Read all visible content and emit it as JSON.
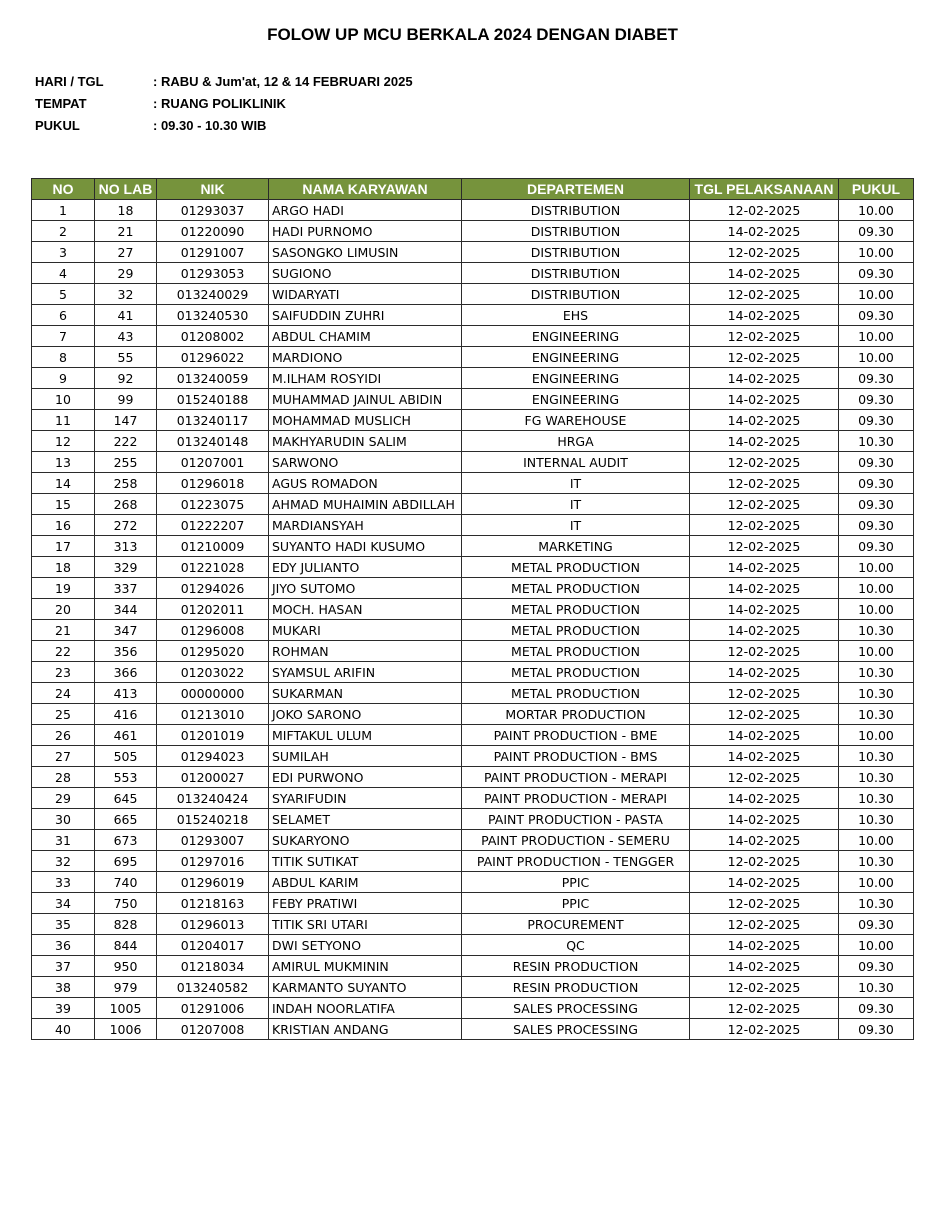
{
  "title": "FOLOW UP MCU BERKALA 2024 DENGAN DIABET",
  "info": [
    {
      "label": "HARI / TGL",
      "value": ": RABU & Jum'at, 12 & 14 FEBRUARI 2025"
    },
    {
      "label": "TEMPAT",
      "value": ": RUANG POLIKLINIK"
    },
    {
      "label": "PUKUL",
      "value": ": 09.30 - 10.30 WIB"
    }
  ],
  "table": {
    "header_color": "#76933c",
    "columns": [
      "NO",
      "NO LAB",
      "NIK",
      "NAMA KARYAWAN",
      "DEPARTEMEN",
      "TGL PELAKSANAAN",
      "PUKUL"
    ],
    "rows": [
      [
        "1",
        "18",
        "01293037",
        "ARGO HADI",
        "DISTRIBUTION",
        "12-02-2025",
        "10.00"
      ],
      [
        "2",
        "21",
        "01220090",
        "HADI PURNOMO",
        "DISTRIBUTION",
        "14-02-2025",
        "09.30"
      ],
      [
        "3",
        "27",
        "01291007",
        "SASONGKO LIMUSIN",
        "DISTRIBUTION",
        "12-02-2025",
        "10.00"
      ],
      [
        "4",
        "29",
        "01293053",
        "SUGIONO",
        "DISTRIBUTION",
        "14-02-2025",
        "09.30"
      ],
      [
        "5",
        "32",
        "013240029",
        "WIDARYATI",
        "DISTRIBUTION",
        "12-02-2025",
        "10.00"
      ],
      [
        "6",
        "41",
        "013240530",
        "SAIFUDDIN ZUHRI",
        "EHS",
        "14-02-2025",
        "09.30"
      ],
      [
        "7",
        "43",
        "01208002",
        "ABDUL CHAMIM",
        "ENGINEERING",
        "12-02-2025",
        "10.00"
      ],
      [
        "8",
        "55",
        "01296022",
        "MARDIONO",
        "ENGINEERING",
        "12-02-2025",
        "10.00"
      ],
      [
        "9",
        "92",
        "013240059",
        "M.ILHAM ROSYIDI",
        "ENGINEERING",
        "14-02-2025",
        "09.30"
      ],
      [
        "10",
        "99",
        "015240188",
        "MUHAMMAD JAINUL ABIDIN",
        "ENGINEERING",
        "14-02-2025",
        "09.30"
      ],
      [
        "11",
        "147",
        "013240117",
        "MOHAMMAD MUSLICH",
        "FG WAREHOUSE",
        "14-02-2025",
        "09.30"
      ],
      [
        "12",
        "222",
        "013240148",
        "MAKHYARUDIN SALIM",
        "HRGA",
        "14-02-2025",
        "10.30"
      ],
      [
        "13",
        "255",
        "01207001",
        "SARWONO",
        "INTERNAL AUDIT",
        "12-02-2025",
        "09.30"
      ],
      [
        "14",
        "258",
        "01296018",
        "AGUS ROMADON",
        "IT",
        "12-02-2025",
        "09.30"
      ],
      [
        "15",
        "268",
        "01223075",
        "AHMAD MUHAIMIN ABDILLAH",
        "IT",
        "12-02-2025",
        "09.30"
      ],
      [
        "16",
        "272",
        "01222207",
        "MARDIANSYAH",
        "IT",
        "12-02-2025",
        "09.30"
      ],
      [
        "17",
        "313",
        "01210009",
        "SUYANTO HADI KUSUMO",
        "MARKETING",
        "12-02-2025",
        "09.30"
      ],
      [
        "18",
        "329",
        "01221028",
        "EDY JULIANTO",
        "METAL PRODUCTION",
        "14-02-2025",
        "10.00"
      ],
      [
        "19",
        "337",
        "01294026",
        "JIYO SUTOMO",
        "METAL PRODUCTION",
        "14-02-2025",
        "10.00"
      ],
      [
        "20",
        "344",
        "01202011",
        "MOCH. HASAN",
        "METAL PRODUCTION",
        "14-02-2025",
        "10.00"
      ],
      [
        "21",
        "347",
        "01296008",
        "MUKARI",
        "METAL PRODUCTION",
        "14-02-2025",
        "10.30"
      ],
      [
        "22",
        "356",
        "01295020",
        "ROHMAN",
        "METAL PRODUCTION",
        "12-02-2025",
        "10.00"
      ],
      [
        "23",
        "366",
        "01203022",
        "SYAMSUL ARIFIN",
        "METAL PRODUCTION",
        "14-02-2025",
        "10.30"
      ],
      [
        "24",
        "413",
        "00000000",
        "SUKARMAN",
        "METAL PRODUCTION",
        "12-02-2025",
        "10.30"
      ],
      [
        "25",
        "416",
        "01213010",
        "JOKO SARONO",
        "MORTAR PRODUCTION",
        "12-02-2025",
        "10.30"
      ],
      [
        "26",
        "461",
        "01201019",
        "MIFTAKUL ULUM",
        "PAINT PRODUCTION - BME",
        "14-02-2025",
        "10.00"
      ],
      [
        "27",
        "505",
        "01294023",
        "SUMILAH",
        "PAINT PRODUCTION - BMS",
        "14-02-2025",
        "10.30"
      ],
      [
        "28",
        "553",
        "01200027",
        "EDI PURWONO",
        "PAINT PRODUCTION - MERAPI",
        "12-02-2025",
        "10.30"
      ],
      [
        "29",
        "645",
        "013240424",
        "SYARIFUDIN",
        "PAINT PRODUCTION - MERAPI",
        "14-02-2025",
        "10.30"
      ],
      [
        "30",
        "665",
        "015240218",
        "SELAMET",
        "PAINT PRODUCTION - PASTA",
        "14-02-2025",
        "10.30"
      ],
      [
        "31",
        "673",
        "01293007",
        "SUKARYONO",
        "PAINT PRODUCTION - SEMERU",
        "14-02-2025",
        "10.00"
      ],
      [
        "32",
        "695",
        "01297016",
        "TITIK SUTIKAT",
        "PAINT PRODUCTION - TENGGER",
        "12-02-2025",
        "10.30"
      ],
      [
        "33",
        "740",
        "01296019",
        "ABDUL KARIM",
        "PPIC",
        "14-02-2025",
        "10.00"
      ],
      [
        "34",
        "750",
        "01218163",
        "FEBY PRATIWI",
        "PPIC",
        "12-02-2025",
        "10.30"
      ],
      [
        "35",
        "828",
        "01296013",
        "TITIK SRI UTARI",
        "PROCUREMENT",
        "12-02-2025",
        "09.30"
      ],
      [
        "36",
        "844",
        "01204017",
        "DWI SETYONO",
        "QC",
        "14-02-2025",
        "10.00"
      ],
      [
        "37",
        "950",
        "01218034",
        "AMIRUL MUKMININ",
        "RESIN PRODUCTION",
        "14-02-2025",
        "09.30"
      ],
      [
        "38",
        "979",
        "013240582",
        "KARMANTO SUYANTO",
        "RESIN PRODUCTION",
        "12-02-2025",
        "10.30"
      ],
      [
        "39",
        "1005",
        "01291006",
        "INDAH NOORLATIFA",
        "SALES PROCESSING",
        "12-02-2025",
        "09.30"
      ],
      [
        "40",
        "1006",
        "01207008",
        "KRISTIAN ANDANG",
        "SALES PROCESSING",
        "12-02-2025",
        "09.30"
      ]
    ]
  }
}
